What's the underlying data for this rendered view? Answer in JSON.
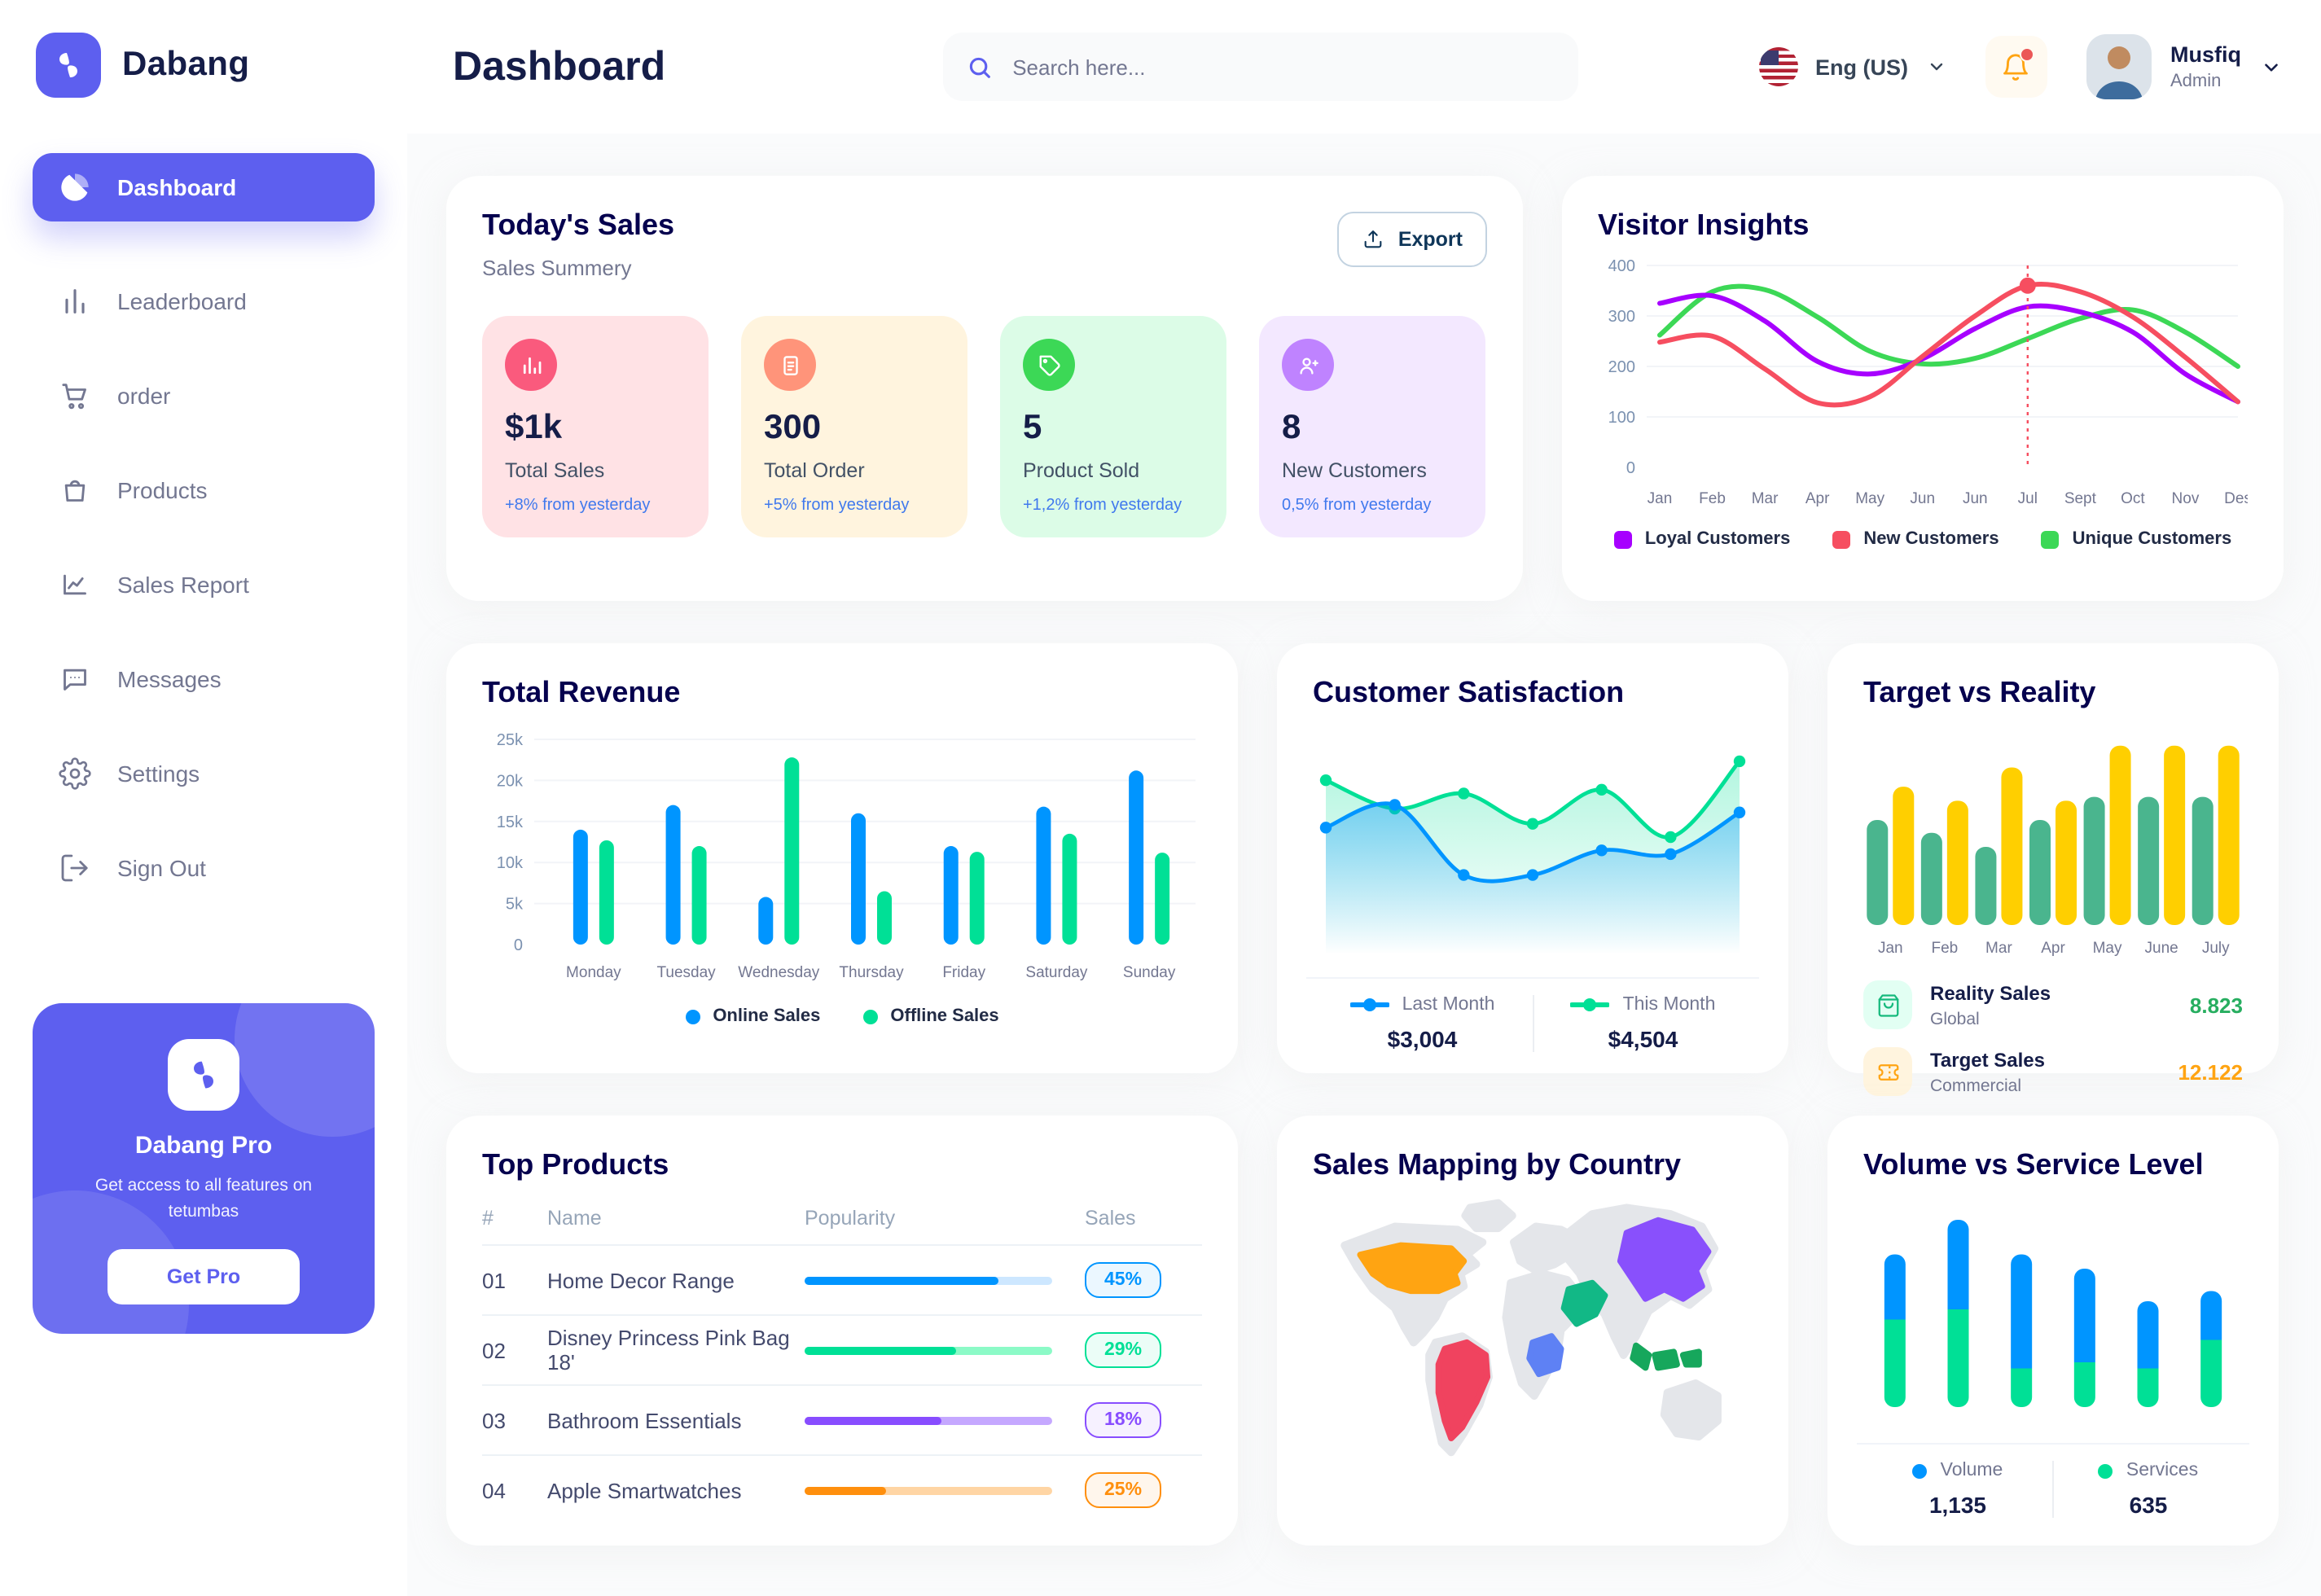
{
  "brand": {
    "name": "Dabang"
  },
  "header": {
    "title": "Dashboard",
    "search_placeholder": "Search here...",
    "language": "Eng (US)",
    "user": {
      "name": "Musfiq",
      "role": "Admin"
    }
  },
  "sidebar": {
    "items": [
      {
        "label": "Dashboard",
        "icon": "pie",
        "active": true
      },
      {
        "label": "Leaderboard",
        "icon": "bars",
        "active": false
      },
      {
        "label": "order",
        "icon": "cart",
        "active": false
      },
      {
        "label": "Products",
        "icon": "bag",
        "active": false
      },
      {
        "label": "Sales Report",
        "icon": "line",
        "active": false
      },
      {
        "label": "Messages",
        "icon": "chat",
        "active": false
      },
      {
        "label": "Settings",
        "icon": "gear",
        "active": false
      },
      {
        "label": "Sign Out",
        "icon": "signout",
        "active": false
      }
    ],
    "promo": {
      "title": "Dabang Pro",
      "description": "Get access to all features on tetumbas",
      "button": "Get Pro"
    }
  },
  "today_sales": {
    "title": "Today's Sales",
    "subtitle": "Sales Summery",
    "export_label": "Export",
    "cards": [
      {
        "value": "$1k",
        "label": "Total Sales",
        "delta": "+8% from yesterday",
        "bg": "#FFE2E5",
        "icon_bg": "#FA5A7D",
        "icon": "chart"
      },
      {
        "value": "300",
        "label": "Total Order",
        "delta": "+5% from yesterday",
        "bg": "#FFF4DE",
        "icon_bg": "#FF947A",
        "icon": "file"
      },
      {
        "value": "5",
        "label": "Product Sold",
        "delta": "+1,2% from yesterday",
        "bg": "#DCFCE7",
        "icon_bg": "#3CD856",
        "icon": "tag"
      },
      {
        "value": "8",
        "label": "New Customers",
        "delta": "0,5% from yesterday",
        "bg": "#F3E8FF",
        "icon_bg": "#BF83FF",
        "icon": "user"
      }
    ]
  },
  "visitor_insights": {
    "title": "Visitor Insights",
    "type": "line",
    "x": [
      "Jan",
      "Feb",
      "Mar",
      "Apr",
      "May",
      "Jun",
      "Jun",
      "Jul",
      "Sept",
      "Oct",
      "Nov",
      "Des"
    ],
    "ylim": [
      0,
      400
    ],
    "yticks": [
      0,
      100,
      200,
      300,
      400
    ],
    "series": [
      {
        "name": "Loyal Customers",
        "color": "#A700FF",
        "values": [
          325,
          340,
          290,
          210,
          185,
          215,
          275,
          318,
          308,
          268,
          185,
          130
        ]
      },
      {
        "name": "New Customers",
        "color": "#F64E60",
        "values": [
          248,
          260,
          195,
          128,
          140,
          220,
          300,
          360,
          348,
          298,
          218,
          130
        ],
        "marker_index": 7
      },
      {
        "name": "Unique Customers",
        "color": "#3CD856",
        "values": [
          262,
          348,
          352,
          298,
          230,
          205,
          216,
          255,
          295,
          312,
          268,
          200
        ]
      }
    ]
  },
  "total_revenue": {
    "title": "Total Revenue",
    "type": "bar",
    "categories": [
      "Monday",
      "Tuesday",
      "Wednesday",
      "Thursday",
      "Friday",
      "Saturday",
      "Sunday"
    ],
    "ylim": [
      0,
      25000
    ],
    "yticks": [
      {
        "v": 0,
        "label": "0"
      },
      {
        "v": 5000,
        "label": "5k"
      },
      {
        "v": 10000,
        "label": "10k"
      },
      {
        "v": 15000,
        "label": "15k"
      },
      {
        "v": 20000,
        "label": "20k"
      },
      {
        "v": 25000,
        "label": "25k"
      }
    ],
    "series": [
      {
        "name": "Online Sales",
        "color": "#0095FF",
        "values": [
          14000,
          17000,
          5800,
          16000,
          12000,
          16800,
          21200
        ]
      },
      {
        "name": "Offline Sales",
        "color": "#00E096",
        "values": [
          12700,
          12000,
          22800,
          6500,
          11300,
          13500,
          11200
        ]
      }
    ]
  },
  "customer_satisfaction": {
    "title": "Customer Satisfaction",
    "type": "area",
    "ylim": [
      0,
      110
    ],
    "series": [
      {
        "name": "This Month",
        "color": "#00E096",
        "total": "$4,504",
        "values": [
          85,
          70,
          78,
          62,
          80,
          55,
          95
        ]
      },
      {
        "name": "Last Month",
        "color": "#0095FF",
        "total": "$3,004",
        "values": [
          60,
          72,
          35,
          35,
          48,
          46,
          68
        ]
      }
    ],
    "legend_order": [
      "Last Month",
      "This Month"
    ]
  },
  "target_reality": {
    "title": "Target vs Reality",
    "type": "bar",
    "categories": [
      "Jan",
      "Feb",
      "Mar",
      "Apr",
      "May",
      "June",
      "July"
    ],
    "ylim": [
      0,
      15
    ],
    "series": [
      {
        "name": "Reality Sales",
        "subtitle": "Global",
        "color": "#4AB58E",
        "value_label": "8.823",
        "value_color": "#27AE60",
        "icon": "bag2",
        "icon_bg": "#E2FFF3",
        "values": [
          8.2,
          7.2,
          6.1,
          8.2,
          10,
          10,
          10
        ]
      },
      {
        "name": "Target Sales",
        "subtitle": "Commercial",
        "color": "#FFCF00",
        "value_label": "12.122",
        "value_color": "#FFA412",
        "icon": "ticket",
        "icon_bg": "#FFF4DE",
        "values": [
          10.8,
          9.7,
          12.3,
          9.7,
          14,
          14,
          14
        ]
      }
    ]
  },
  "top_products": {
    "title": "Top Products",
    "headers": {
      "num": "#",
      "name": "Name",
      "popularity": "Popularity",
      "sales": "Sales"
    },
    "rows": [
      {
        "num": "01",
        "name": "Home Decor Range",
        "progress": 0.78,
        "sales": "45%",
        "color": "#0095FF",
        "track": "#CDE7FF"
      },
      {
        "num": "02",
        "name": "Disney Princess Pink Bag 18'",
        "progress": 0.61,
        "sales": "29%",
        "color": "#00E096",
        "track": "#8CFAC7"
      },
      {
        "num": "03",
        "name": "Bathroom Essentials",
        "progress": 0.55,
        "sales": "18%",
        "color": "#884DFF",
        "track": "#C5A8FF"
      },
      {
        "num": "04",
        "name": "Apple Smartwatches",
        "progress": 0.33,
        "sales": "25%",
        "color": "#FF8F0D",
        "track": "#FFD5A4"
      }
    ]
  },
  "sales_map": {
    "title": "Sales Mapping by Country",
    "regions": [
      {
        "id": "usa",
        "country": "United States",
        "color": "#FFA412"
      },
      {
        "id": "brazil",
        "country": "Brazil",
        "color": "#F0435F"
      },
      {
        "id": "china",
        "country": "China",
        "color": "#8950FC"
      },
      {
        "id": "saudi-arabia",
        "country": "Saudi Arabia",
        "color": "#12B886"
      },
      {
        "id": "dr-congo",
        "country": "DR Congo",
        "color": "#5E81F4"
      },
      {
        "id": "indonesia",
        "country": "Indonesia",
        "color": "#16A75C"
      }
    ]
  },
  "volume_service": {
    "title": "Volume vs Service Level",
    "type": "stacked-bar",
    "series": [
      {
        "name": "Volume",
        "color": "#0095FF",
        "total": "1,135",
        "values": [
          32,
          44,
          56,
          46,
          33,
          24
        ]
      },
      {
        "name": "Services",
        "color": "#00E096",
        "total": "635",
        "values": [
          43,
          48,
          19,
          22,
          19,
          33
        ]
      }
    ]
  }
}
